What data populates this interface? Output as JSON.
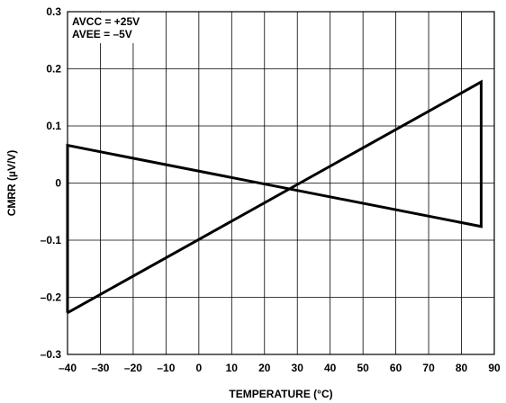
{
  "chart_data": {
    "type": "line",
    "title": "",
    "xlabel": "TEMPERATURE (°C)",
    "ylabel": "CMRR (µV/V)",
    "xlim": [
      -40,
      90
    ],
    "ylim": [
      -0.3,
      0.3
    ],
    "x_ticks": [
      -40,
      -30,
      -20,
      -10,
      0,
      10,
      20,
      30,
      40,
      50,
      60,
      70,
      80,
      90
    ],
    "x_tick_labels": [
      "–40",
      "–30",
      "–20",
      "–10",
      "0",
      "10",
      "20",
      "30",
      "40",
      "50",
      "60",
      "70",
      "80",
      "90"
    ],
    "y_ticks": [
      -0.3,
      -0.2,
      -0.1,
      0,
      0.1,
      0.2,
      0.3
    ],
    "y_tick_labels": [
      "–0.3",
      "–0.2",
      "–0.1",
      "0",
      "0.1",
      "0.2",
      "0.3"
    ],
    "grid": true,
    "legend": "none",
    "annotations": [
      "AVCC = +25V",
      "AVEE = –5V"
    ],
    "series": [
      {
        "color": "#000000",
        "x": [
          -40,
          86,
          86,
          -40,
          -40
        ],
        "y": [
          -0.227,
          0.177,
          -0.076,
          0.066,
          -0.227
        ]
      }
    ]
  }
}
